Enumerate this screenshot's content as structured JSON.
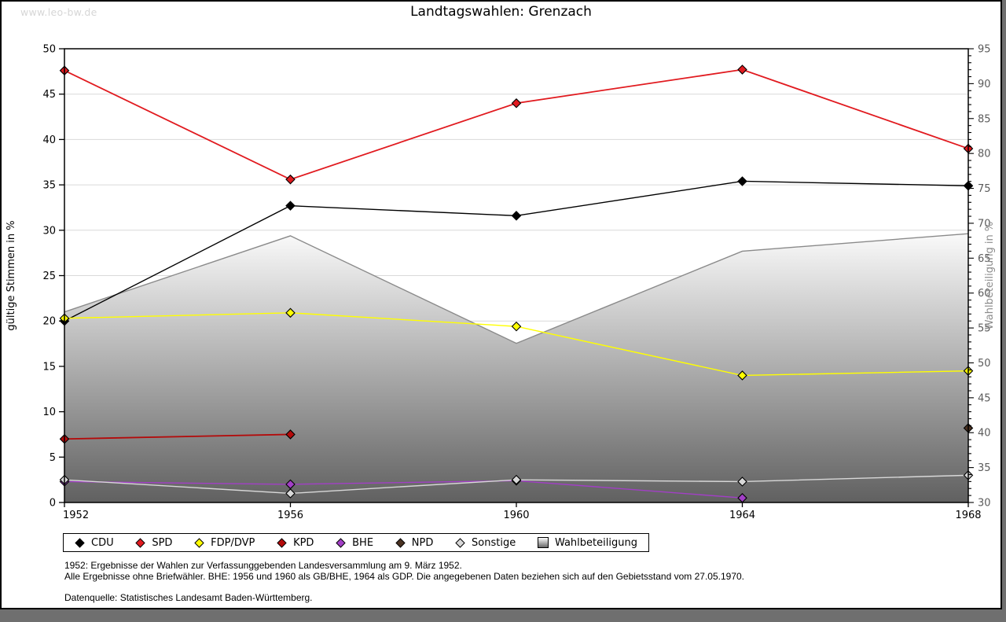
{
  "watermark": "www.leo-bw.de",
  "title": "Landtagswahlen: Grenzach",
  "footnotes": {
    "line1": "1952: Ergebnisse der Wahlen zur Verfassunggebenden Landesversammlung am 9. März 1952.",
    "line2": "Alle Ergebnisse ohne Briefwähler. BHE: 1956 und 1960 als GB/BHE, 1964 als GDP. Die angegebenen Daten beziehen sich auf den Gebietsstand vom 27.05.1970.",
    "source": "Datenquelle: Statistisches Landesamt Baden-Württemberg."
  },
  "chart_data": {
    "type": "line",
    "title": "Landtagswahlen: Grenzach",
    "x": [
      1952,
      1956,
      1960,
      1964,
      1968
    ],
    "left_axis": {
      "label": "gültige Stimmen in %",
      "min": 0,
      "max": 50,
      "tick_step": 5
    },
    "right_axis": {
      "label": "Wahlbeteiligung in %",
      "min": 30,
      "max": 95,
      "tick_step": 5,
      "minor_tick_step": 1
    },
    "grid": true,
    "legend_position": "bottom",
    "series": [
      {
        "name": "CDU",
        "axis": "left",
        "color": "#000000",
        "values": [
          20.0,
          32.7,
          31.6,
          35.4,
          34.9
        ]
      },
      {
        "name": "SPD",
        "axis": "left",
        "color": "#e11a1f",
        "values": [
          47.6,
          35.6,
          44.0,
          47.7,
          39.0
        ]
      },
      {
        "name": "FDP/DVP",
        "axis": "left",
        "color": "#ffff00",
        "values": [
          20.3,
          20.9,
          19.4,
          14.0,
          14.5
        ]
      },
      {
        "name": "KPD",
        "axis": "left",
        "color": "#b40a0a",
        "values": [
          7.0,
          7.5,
          null,
          null,
          null
        ]
      },
      {
        "name": "BHE",
        "axis": "left",
        "color": "#a23fc6",
        "values": [
          2.3,
          2.0,
          2.4,
          0.5,
          null
        ]
      },
      {
        "name": "NPD",
        "axis": "left",
        "color": "#4a3222",
        "values": [
          null,
          null,
          null,
          null,
          8.2
        ]
      },
      {
        "name": "Sonstige",
        "axis": "left",
        "color": "#d8d8d8",
        "values": [
          2.5,
          1.0,
          2.5,
          2.3,
          3.0
        ]
      },
      {
        "name": "Wahlbeteiligung",
        "axis": "right",
        "type": "area",
        "line_color": "#8a8a8a",
        "values": [
          57.3,
          68.2,
          52.8,
          66.0,
          68.5
        ]
      }
    ]
  }
}
